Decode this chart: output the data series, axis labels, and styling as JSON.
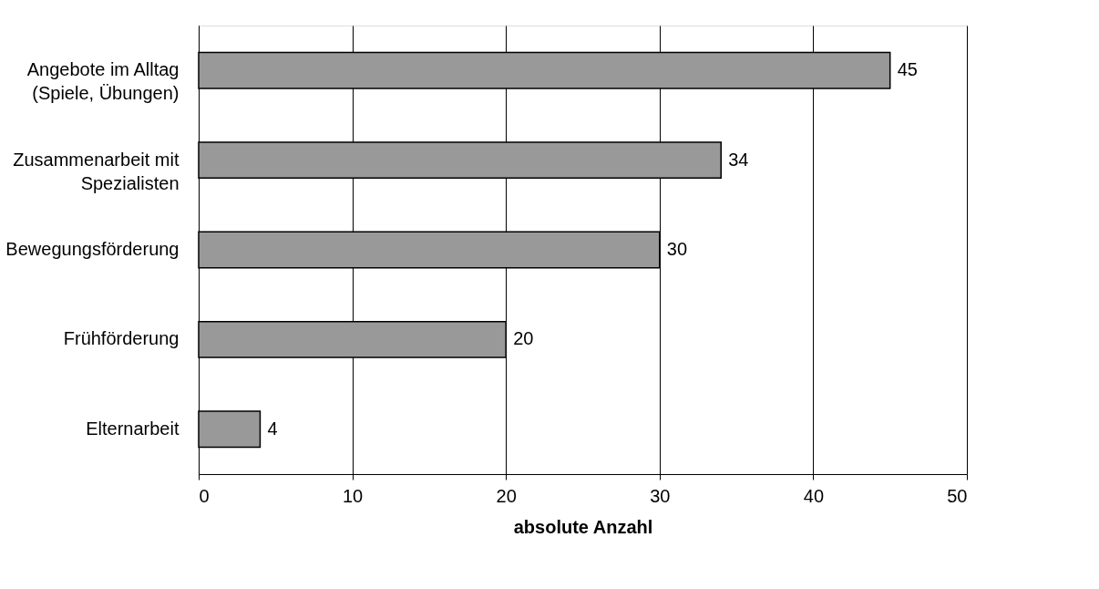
{
  "chart_data": {
    "type": "bar",
    "orientation": "horizontal",
    "xlabel": "absolute Anzahl",
    "categories": [
      "Angebote im Alltag\n(Spiele, Übungen)",
      "Zusammenarbeit mit\nSpezialisten",
      "Bewegungsförderung",
      "Frühförderung",
      "Elternarbeit"
    ],
    "values": [
      45,
      34,
      30,
      20,
      4
    ],
    "color": "#999999",
    "xlim": [
      0,
      50
    ],
    "xticks": [
      0,
      10,
      20,
      30,
      40,
      50
    ],
    "grid": "x",
    "data_labels": true
  }
}
